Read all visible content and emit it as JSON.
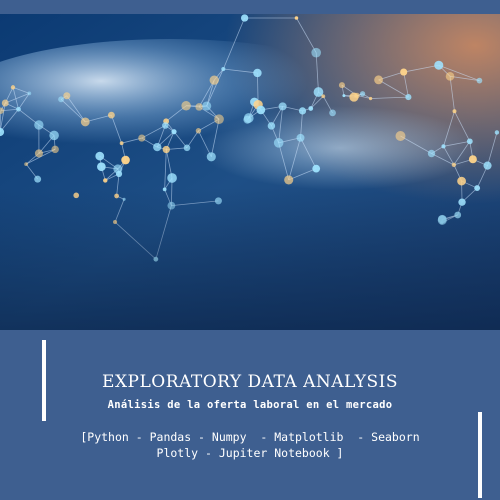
{
  "hero": {
    "image": "abstract-data-network-icon",
    "colors": {
      "deep": "#0b2a55",
      "mid": "#1f5b8f",
      "glow": "#e6f2ff",
      "warm": "#c1825d",
      "node_warm": "#ffd48a",
      "node_cool": "#9fe3ff"
    }
  },
  "title": "EXPLORATORY DATA ANALYSIS",
  "subtitle": "Análisis de la oferta laboral en el mercado",
  "stack": {
    "line1": "[Python - Pandas - Numpy  - Matplotlib  - Seaborn",
    "line2": "Plotly - Jupiter Notebook ]"
  },
  "colors": {
    "background": "#3e5f90",
    "text": "#ffffff"
  }
}
